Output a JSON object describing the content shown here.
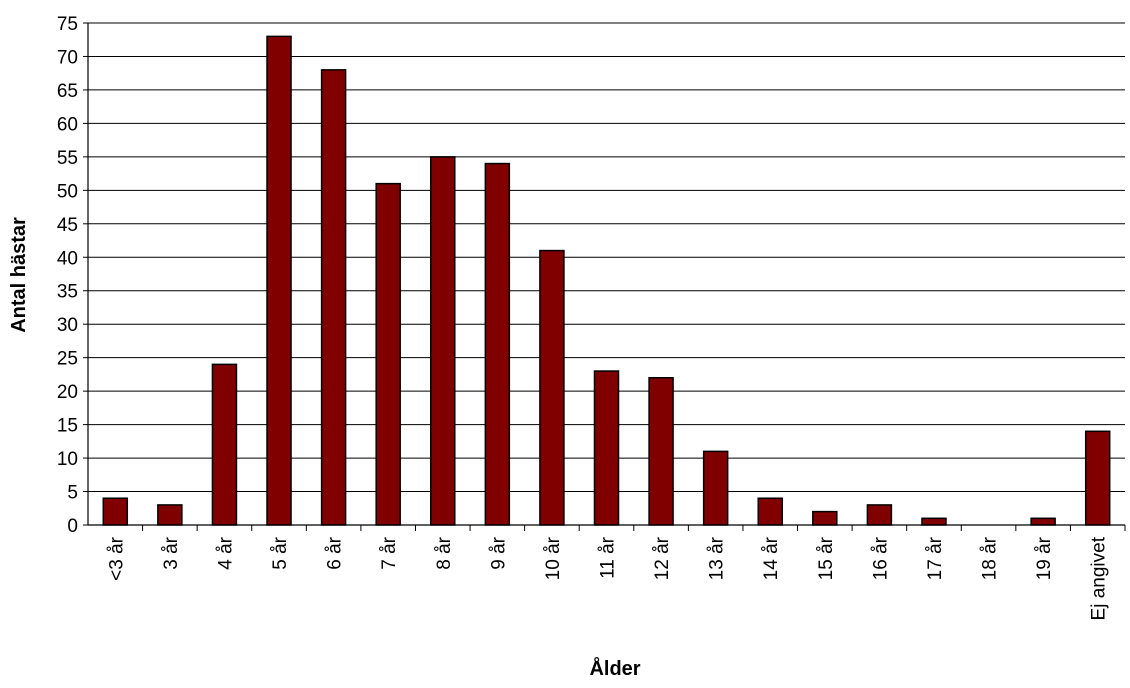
{
  "chart_data": {
    "type": "bar",
    "categories": [
      "<3 år",
      "3 år",
      "4 år",
      "5 år",
      "6 år",
      "7 år",
      "8 år",
      "9 år",
      "10 år",
      "11 år",
      "12 år",
      "13 år",
      "14 år",
      "15 år",
      "16 år",
      "17 år",
      "18 år",
      "19 år",
      "Ej angivet"
    ],
    "values": [
      4,
      3,
      24,
      73,
      68,
      51,
      55,
      54,
      41,
      23,
      22,
      11,
      4,
      2,
      3,
      1,
      0,
      1,
      14
    ],
    "xlabel": "Ålder",
    "ylabel": "Antal hästar",
    "ylim": [
      0,
      75
    ],
    "yticks": [
      0,
      5,
      10,
      15,
      20,
      25,
      30,
      35,
      40,
      45,
      50,
      55,
      60,
      65,
      70,
      75
    ],
    "grid": true,
    "legend": "none",
    "colors": {
      "bar_fill": "#800000",
      "bar_stroke": "#000000",
      "grid": "#000000",
      "axis": "#000000"
    }
  }
}
